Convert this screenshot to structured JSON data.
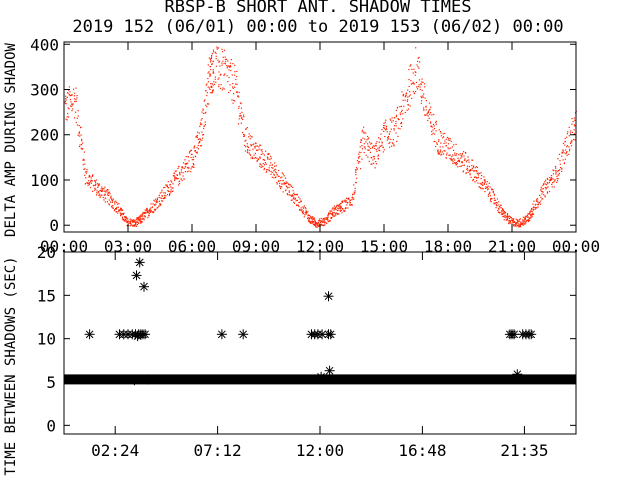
{
  "header": {
    "title": "RBSP-B SHORT ANT. SHADOW TIMES",
    "subtitle": "2019 152 (06/01) 00:00 to 2019 153 (06/02) 00:00"
  },
  "chart_data": [
    {
      "type": "scatter",
      "name": "delta-amp-panel",
      "ylabel": "DELTA AMP DURING SHADOW",
      "xlim": [
        0,
        24
      ],
      "ylim": [
        -15,
        405
      ],
      "x_tick_values": [
        0,
        3,
        6,
        9,
        12,
        15,
        18,
        21,
        24
      ],
      "x_tick_labels": [
        "00:00",
        "03:00",
        "06:00",
        "09:00",
        "12:00",
        "15:00",
        "18:00",
        "21:00",
        "00:00"
      ],
      "y_tick_values": [
        0,
        100,
        200,
        300,
        400
      ],
      "y_tick_labels": [
        "0",
        "100",
        "200",
        "300",
        "400"
      ],
      "color": "#ff2200",
      "series": [
        {
          "x": [
            0.0,
            0.5,
            1.0,
            1.5,
            2.0,
            2.5,
            2.9,
            3.3,
            3.6,
            4.0,
            4.5,
            5.0,
            5.5,
            6.0,
            6.4,
            6.8,
            7.0,
            7.5,
            8.0,
            8.5,
            9.0,
            9.5,
            10.0,
            10.5,
            11.0,
            11.5,
            11.8,
            12.2,
            12.6,
            13.0,
            13.5,
            14.0,
            14.5,
            15.0,
            15.5,
            16.0,
            16.5,
            17.0,
            17.5,
            18.0,
            18.5,
            19.0,
            19.5,
            20.0,
            20.5,
            20.9,
            21.3,
            21.7,
            22.0,
            22.5,
            23.0,
            23.5,
            24.0
          ],
          "y": [
            260,
            280,
            110,
            85,
            65,
            40,
            10,
            5,
            15,
            35,
            60,
            90,
            120,
            150,
            200,
            330,
            350,
            340,
            310,
            190,
            160,
            140,
            110,
            80,
            50,
            15,
            5,
            10,
            30,
            40,
            60,
            190,
            150,
            200,
            210,
            280,
            350,
            250,
            190,
            170,
            150,
            130,
            100,
            70,
            30,
            10,
            5,
            15,
            40,
            80,
            110,
            170,
            230
          ]
        }
      ]
    },
    {
      "type": "scatter",
      "name": "time-between-shadows-panel",
      "ylabel": "TIME BETWEEN SHADOWS (SEC)",
      "xlim": [
        0,
        24
      ],
      "ylim": [
        -1,
        20
      ],
      "x_tick_values": [
        2.4,
        7.2,
        12.0,
        16.8,
        21.583
      ],
      "x_tick_labels": [
        "02:24",
        "07:12",
        "12:00",
        "16:48",
        "21:35"
      ],
      "y_tick_values": [
        0,
        5,
        10,
        15,
        20
      ],
      "y_tick_labels": [
        "0",
        "5",
        "10",
        "15",
        "20"
      ],
      "color": "#000000",
      "baseline_y": 5.3,
      "baseline_x_range": [
        0.0,
        24.0
      ],
      "points": {
        "x": [
          1.2,
          2.6,
          2.8,
          3.0,
          3.2,
          3.35,
          3.5,
          3.6,
          3.7,
          3.8,
          3.4,
          3.55,
          3.75,
          7.4,
          8.4,
          11.6,
          11.75,
          11.9,
          12.1,
          12.4,
          12.5,
          12.4,
          12.45,
          20.9,
          21.0,
          21.1,
          21.5,
          21.65,
          21.8,
          21.9,
          3.3,
          3.45,
          3.95,
          12.05,
          21.25
        ],
        "y": [
          10.5,
          10.5,
          10.5,
          10.5,
          10.5,
          10.5,
          10.5,
          10.5,
          10.5,
          10.5,
          17.3,
          18.8,
          16.0,
          10.5,
          10.5,
          10.5,
          10.5,
          10.5,
          10.5,
          10.5,
          10.5,
          14.9,
          6.3,
          10.5,
          10.5,
          10.5,
          10.5,
          10.5,
          10.5,
          10.5,
          5.2,
          10.3,
          5.3,
          5.6,
          5.9
        ]
      }
    }
  ]
}
